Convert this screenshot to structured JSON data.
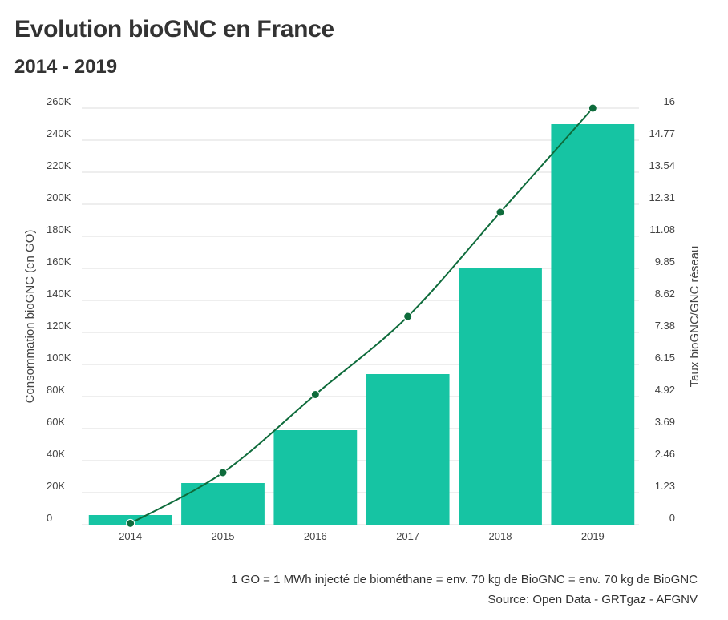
{
  "header": {
    "title": "Evolution bioGNC en France",
    "subtitle": "2014 - 2019"
  },
  "footer": {
    "note": "1 GO = 1 MWh injecté de biométhane = env. 70 kg de BioGNC = env. 70 kg de BioGNC",
    "source": "Source: Open Data - GRTgaz - AFGNV"
  },
  "colors": {
    "bar": "#16C4A3",
    "line": "#0E6B3B",
    "grid": "#DDDDDD"
  },
  "chart_data": {
    "type": "bar",
    "categories": [
      "2014",
      "2015",
      "2016",
      "2017",
      "2018",
      "2019"
    ],
    "series": [
      {
        "axis": "left",
        "type": "bar",
        "values": [
          6000,
          26000,
          59000,
          94000,
          160000,
          250000
        ]
      },
      {
        "axis": "right",
        "type": "line",
        "values": [
          0.05,
          2.0,
          5.0,
          8.0,
          12.0,
          16.0
        ]
      }
    ],
    "ylabel": "Consommation bioGNC (en GO)",
    "y2label": "Taux bioGNC/GNC réseau",
    "ylim": [
      0,
      260000
    ],
    "y2lim": [
      0,
      16
    ],
    "yticks": [
      "0",
      "20K",
      "40K",
      "60K",
      "80K",
      "100K",
      "120K",
      "140K",
      "160K",
      "180K",
      "200K",
      "220K",
      "240K",
      "260K"
    ],
    "y2ticks": [
      "0",
      "1.23",
      "2.46",
      "3.69",
      "4.92",
      "6.15",
      "7.38",
      "8.62",
      "9.85",
      "11.08",
      "12.31",
      "13.54",
      "14.77",
      "16"
    ],
    "grid": true
  }
}
